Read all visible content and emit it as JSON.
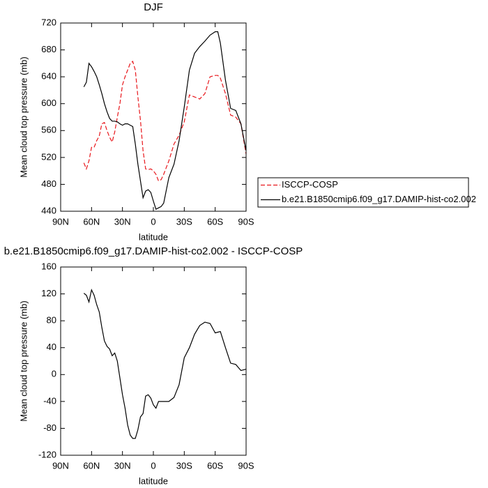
{
  "chart_data": [
    {
      "type": "line",
      "title": "DJF",
      "xlabel": "latitude",
      "ylabel": "Mean cloud top pressure (mb)",
      "x": [
        67.5,
        65,
        62.5,
        60,
        57.5,
        55,
        52.5,
        50,
        47.5,
        45,
        42.5,
        40,
        37.5,
        35,
        32.5,
        30,
        27.5,
        25,
        22.5,
        20,
        17.5,
        15,
        12.5,
        10,
        7.5,
        5,
        2.5,
        0,
        -2.5,
        -5,
        -7.5,
        -10,
        -15,
        -20,
        -25,
        -30,
        -35,
        -40,
        -45,
        -50,
        -55,
        -60,
        -62.5,
        -65,
        -70,
        -75,
        -80,
        -85,
        -90
      ],
      "series": [
        {
          "name": "ISCCP-COSP",
          "color": "#e8161b",
          "dash": true,
          "values": [
            512,
            503,
            515,
            535,
            535,
            545,
            552,
            570,
            572,
            560,
            550,
            543,
            558,
            580,
            600,
            628,
            640,
            650,
            660,
            663,
            650,
            610,
            575,
            530,
            503,
            502,
            503,
            500,
            495,
            485,
            487,
            495,
            515,
            540,
            553,
            573,
            613,
            610,
            607,
            615,
            640,
            642,
            642,
            638,
            615,
            583,
            580,
            570,
            525
          ]
        },
        {
          "name": "b.e21.B1850cmip6.f09_g17.DAMIP-hist-co2.002",
          "color": "#000000",
          "dash": false,
          "values": [
            625,
            632,
            660,
            655,
            648,
            640,
            628,
            615,
            600,
            588,
            578,
            574,
            574,
            573,
            570,
            568,
            570,
            570,
            568,
            566,
            540,
            510,
            485,
            460,
            470,
            472,
            468,
            455,
            443,
            445,
            447,
            452,
            490,
            510,
            545,
            595,
            650,
            675,
            685,
            693,
            702,
            707,
            707,
            690,
            635,
            593,
            590,
            570,
            530
          ]
        }
      ],
      "xlim": [
        90,
        -90
      ],
      "xticks": [
        {
          "value": 90,
          "label": "90N"
        },
        {
          "value": 60,
          "label": "60N"
        },
        {
          "value": 30,
          "label": "30N"
        },
        0,
        {
          "value": -30,
          "label": "30S"
        },
        {
          "value": -60,
          "label": "60S"
        },
        {
          "value": -90,
          "label": "90S"
        }
      ],
      "ylim": [
        440,
        720
      ],
      "yticks": [
        440,
        480,
        520,
        560,
        600,
        640,
        680,
        720
      ],
      "legend": "right"
    },
    {
      "type": "line",
      "title": "b.e21.B1850cmip6.f09_g17.DAMIP-hist-co2.002 - ISCCP-COSP",
      "xlabel": "latitude",
      "ylabel": "Mean cloud top pressure (mb)",
      "x": [
        67.5,
        65,
        62.5,
        60,
        57.5,
        55,
        52.5,
        50,
        47.5,
        45,
        42.5,
        40,
        37.5,
        35,
        32.5,
        30,
        27.5,
        25,
        22.5,
        20,
        17.5,
        15,
        12.5,
        10,
        7.5,
        5,
        2.5,
        0,
        -2.5,
        -5,
        -7.5,
        -10,
        -15,
        -20,
        -25,
        -30,
        -35,
        -40,
        -45,
        -50,
        -55,
        -60,
        -62.5,
        -65,
        -70,
        -75,
        -80,
        -85,
        -90
      ],
      "series": [
        {
          "color": "#000000",
          "dash": false,
          "values": [
            121,
            118,
            108,
            126,
            118,
            104,
            93,
            70,
            50,
            42,
            38,
            28,
            32,
            20,
            -5,
            -30,
            -50,
            -75,
            -90,
            -95,
            -95,
            -82,
            -63,
            -58,
            -32,
            -30,
            -35,
            -45,
            -50,
            -40,
            -40,
            -40,
            -40,
            -34,
            -15,
            25,
            40,
            60,
            73,
            78,
            76,
            62,
            63,
            64,
            40,
            17,
            15,
            6,
            8
          ]
        }
      ],
      "xlim": [
        90,
        -90
      ],
      "xticks": [
        {
          "value": 90,
          "label": "90N"
        },
        {
          "value": 60,
          "label": "60N"
        },
        {
          "value": 30,
          "label": "30N"
        },
        0,
        {
          "value": -30,
          "label": "30S"
        },
        {
          "value": -60,
          "label": "60S"
        },
        {
          "value": -90,
          "label": "90S"
        }
      ],
      "ylim": [
        -120,
        160
      ],
      "yticks": [
        -120,
        -80,
        -40,
        0,
        40,
        80,
        120,
        160
      ]
    }
  ]
}
